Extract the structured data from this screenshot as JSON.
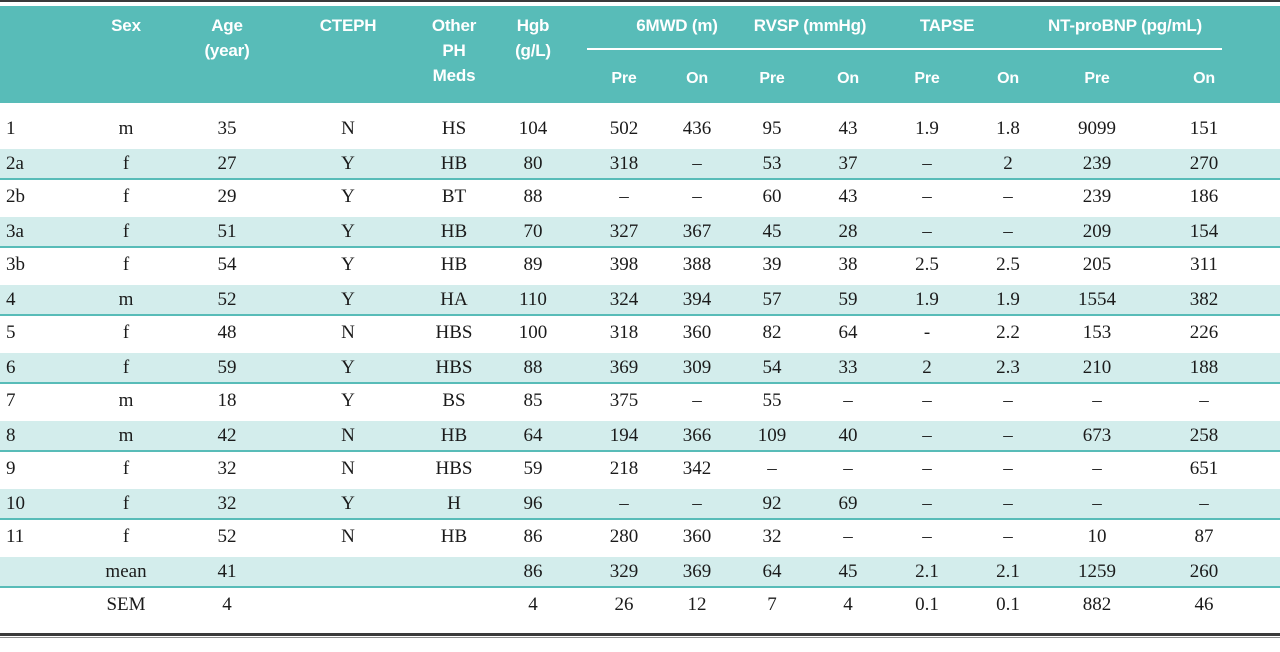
{
  "colors": {
    "header_bg": "#58bcb8",
    "row_highlight": "#d3edec",
    "row_border": "#58bcb8",
    "frame_dark": "#3a3a3a",
    "frame_light": "#8c8c8c",
    "text": "#1b1b1b",
    "header_text": "#ffffff"
  },
  "header": {
    "id": "",
    "sex": "Sex",
    "age": [
      "Age",
      "(year)"
    ],
    "cteph": "CTEPH",
    "meds": [
      "Other",
      "PH",
      "Meds"
    ],
    "hgb": [
      "Hgb",
      "(g/L)"
    ],
    "groups": [
      {
        "label": "6MWD (m)"
      },
      {
        "label": "RVSP (mmHg)"
      },
      {
        "label": "TAPSE"
      },
      {
        "label": "NT-proBNP (pg/mL)"
      }
    ],
    "sub": [
      "Pre",
      "On",
      "Pre",
      "On",
      "Pre",
      "On",
      "Pre",
      "On"
    ]
  },
  "table": {
    "rows": [
      [
        "1",
        "m",
        "35",
        "N",
        "HS",
        "104",
        "502",
        "436",
        "95",
        "43",
        "1.9",
        "1.8",
        "9099",
        "151"
      ],
      [
        "2a",
        "f",
        "27",
        "Y",
        "HB",
        "80",
        "318",
        "–",
        "53",
        "37",
        "–",
        "2",
        "239",
        "270"
      ],
      [
        "2b",
        "f",
        "29",
        "Y",
        "BT",
        "88",
        "–",
        "–",
        "60",
        "43",
        "–",
        "–",
        "239",
        "186"
      ],
      [
        "3a",
        "f",
        "51",
        "Y",
        "HB",
        "70",
        "327",
        "367",
        "45",
        "28",
        "–",
        "–",
        "209",
        "154"
      ],
      [
        "3b",
        "f",
        "54",
        "Y",
        "HB",
        "89",
        "398",
        "388",
        "39",
        "38",
        "2.5",
        "2.5",
        "205",
        "311"
      ],
      [
        "4",
        "m",
        "52",
        "Y",
        "HA",
        "110",
        "324",
        "394",
        "57",
        "59",
        "1.9",
        "1.9",
        "1554",
        "382"
      ],
      [
        "5",
        "f",
        "48",
        "N",
        "HBS",
        "100",
        "318",
        "360",
        "82",
        "64",
        "-",
        "2.2",
        "153",
        "226"
      ],
      [
        "6",
        "f",
        "59",
        "Y",
        "HBS",
        "88",
        "369",
        "309",
        "54",
        "33",
        "2",
        "2.3",
        "210",
        "188"
      ],
      [
        "7",
        "m",
        "18",
        "Y",
        "BS",
        "85",
        "375",
        "–",
        "55",
        "–",
        "–",
        "–",
        "–",
        "–"
      ],
      [
        "8",
        "m",
        "42",
        "N",
        "HB",
        "64",
        "194",
        "366",
        "109",
        "40",
        "–",
        "–",
        "673",
        "258"
      ],
      [
        "9",
        "f",
        "32",
        "N",
        "HBS",
        "59",
        "218",
        "342",
        "–",
        "–",
        "–",
        "–",
        "–",
        "651"
      ],
      [
        "10",
        "f",
        "32",
        "Y",
        "H",
        "96",
        "–",
        "–",
        "92",
        "69",
        "–",
        "–",
        "–",
        "–"
      ],
      [
        "11",
        "f",
        "52",
        "N",
        "HB",
        "86",
        "280",
        "360",
        "32",
        "–",
        "–",
        "–",
        "10",
        "87"
      ],
      [
        "",
        "mean",
        "41",
        "",
        "",
        "86",
        "329",
        "369",
        "64",
        "45",
        "2.1",
        "2.1",
        "1259",
        "260"
      ],
      [
        "",
        "SEM",
        "4",
        "",
        "",
        "4",
        "26",
        "12",
        "7",
        "4",
        "0.1",
        "0.1",
        "882",
        "46"
      ]
    ]
  }
}
